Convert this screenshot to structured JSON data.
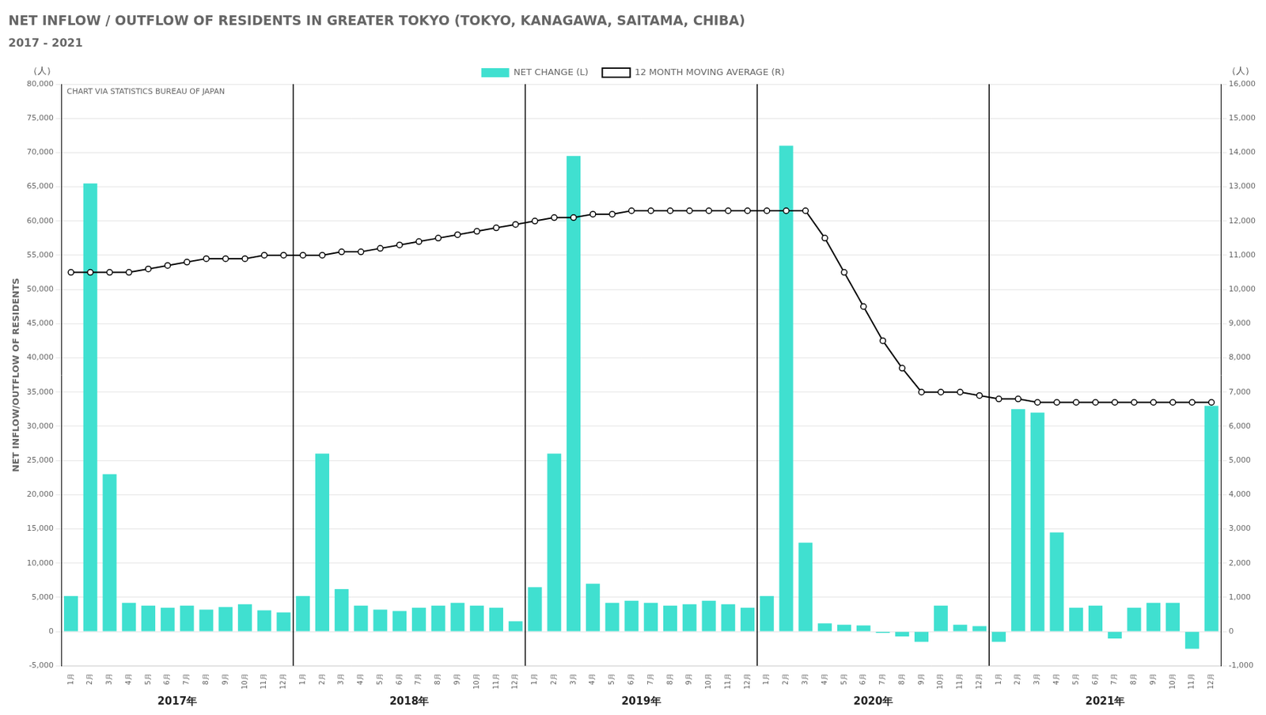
{
  "chart_data": {
    "type": "bar",
    "title": "NET INFLOW / OUTFLOW OF RESIDENTS IN GREATER TOKYO (TOKYO, KANAGAWA, SAITAMA, CHIBA)",
    "subtitle": "2017 - 2021",
    "ylabel": "NET INFLOW/OUTFLOW OF RESIDENTS",
    "ylabel_unit": "（人）",
    "y2label_unit": "（人）",
    "annotations": [
      "CHART VIA STATISTICS BUREAU OF JAPAN"
    ],
    "year_labels": [
      "2017年",
      "2018年",
      "2019年",
      "2020年",
      "2021年"
    ],
    "categories": [
      "1月",
      "2月",
      "3月",
      "4月",
      "5月",
      "6月",
      "7月",
      "8月",
      "9月",
      "10月",
      "11月",
      "12月",
      "1月",
      "2月",
      "3月",
      "4月",
      "5月",
      "6月",
      "7月",
      "8月",
      "9月",
      "10月",
      "11月",
      "12月",
      "1月",
      "2月",
      "3月",
      "4月",
      "5月",
      "6月",
      "7月",
      "8月",
      "9月",
      "10月",
      "11月",
      "12月",
      "1月",
      "2月",
      "3月",
      "4月",
      "5月",
      "6月",
      "7月",
      "8月",
      "9月",
      "10月",
      "11月",
      "12月",
      "1月",
      "2月",
      "3月",
      "4月",
      "5月",
      "6月",
      "7月",
      "8月",
      "9月",
      "10月",
      "11月",
      "12月"
    ],
    "series": [
      {
        "name": "NET CHANGE (L)",
        "type": "bar",
        "color": "#40E0D0",
        "values": [
          5200,
          65500,
          23000,
          4200,
          3800,
          3500,
          3800,
          3200,
          3600,
          4000,
          3100,
          2800,
          5200,
          26000,
          6200,
          3800,
          3200,
          3000,
          3500,
          3800,
          4200,
          3800,
          3500,
          1500,
          6500,
          26000,
          69500,
          7000,
          4200,
          4500,
          4200,
          3800,
          4000,
          4500,
          4000,
          3500,
          5200,
          71000,
          13000,
          1200,
          1000,
          900,
          -200,
          -700,
          -1500,
          3800,
          1000,
          800,
          -1500,
          32500,
          32000,
          14500,
          3500,
          3800,
          -1000,
          3500,
          4200,
          4200,
          -2500,
          33000
        ]
      },
      {
        "name": "12 MONTH MOVING AVERAGE (R)",
        "type": "line",
        "color": "#000000",
        "axis": "y2",
        "marker": "circle",
        "values": [
          10500,
          10500,
          10500,
          10500,
          10600,
          10700,
          10800,
          10900,
          10900,
          10900,
          11000,
          11000,
          11000,
          11000,
          11100,
          11100,
          11200,
          11300,
          11400,
          11500,
          11600,
          11700,
          11800,
          11900,
          12000,
          12100,
          12100,
          12200,
          12200,
          12300,
          12300,
          12300,
          12300,
          12300,
          12300,
          12300,
          12300,
          12300,
          12300,
          11500,
          10500,
          9500,
          8500,
          7700,
          7000,
          7000,
          7000,
          6900,
          6800,
          6800,
          6700,
          6700,
          6700,
          6700,
          6700,
          6700,
          6700,
          6700,
          6700,
          6700
        ]
      }
    ],
    "ylim": [
      -5000,
      80000
    ],
    "yticks": [
      {
        "value": -5000,
        "label": "-5,000"
      },
      0,
      {
        "value": 5000,
        "label": "5,000"
      },
      {
        "value": 10000,
        "label": "10,000"
      },
      {
        "value": 15000,
        "label": "15,000"
      },
      {
        "value": 20000,
        "label": "20,000"
      },
      {
        "value": 25000,
        "label": "25,000"
      },
      {
        "value": 30000,
        "label": "30,000"
      },
      {
        "value": 35000,
        "label": "35,000"
      },
      {
        "value": 40000,
        "label": "40,000"
      },
      {
        "value": 45000,
        "label": "45,000"
      },
      {
        "value": 50000,
        "label": "50,000"
      },
      {
        "value": 55000,
        "label": "55,000"
      },
      {
        "value": 60000,
        "label": "60,000"
      },
      {
        "value": 65000,
        "label": "65,000"
      },
      {
        "value": 70000,
        "label": "70,000"
      },
      {
        "value": 75000,
        "label": "75,000"
      },
      {
        "value": 80000,
        "label": "80,000"
      }
    ],
    "y2lim": [
      -1000,
      16000
    ],
    "y2ticks": [
      {
        "value": -1000,
        "label": "-1,000"
      },
      0,
      {
        "value": 1000,
        "label": "1,000"
      },
      {
        "value": 2000,
        "label": "2,000"
      },
      {
        "value": 3000,
        "label": "3,000"
      },
      {
        "value": 4000,
        "label": "4,000"
      },
      {
        "value": 5000,
        "label": "5,000"
      },
      {
        "value": 6000,
        "label": "6,000"
      },
      {
        "value": 7000,
        "label": "7,000"
      },
      {
        "value": 8000,
        "label": "8,000"
      },
      {
        "value": 9000,
        "label": "9,000"
      },
      {
        "value": 10000,
        "label": "10,000"
      },
      {
        "value": 11000,
        "label": "11,000"
      },
      {
        "value": 12000,
        "label": "12,000"
      },
      {
        "value": 13000,
        "label": "13,000"
      },
      {
        "value": 14000,
        "label": "14,000"
      },
      {
        "value": 15000,
        "label": "15,000"
      },
      {
        "value": 16000,
        "label": "16,000"
      }
    ],
    "grid": true,
    "legend": "top"
  }
}
